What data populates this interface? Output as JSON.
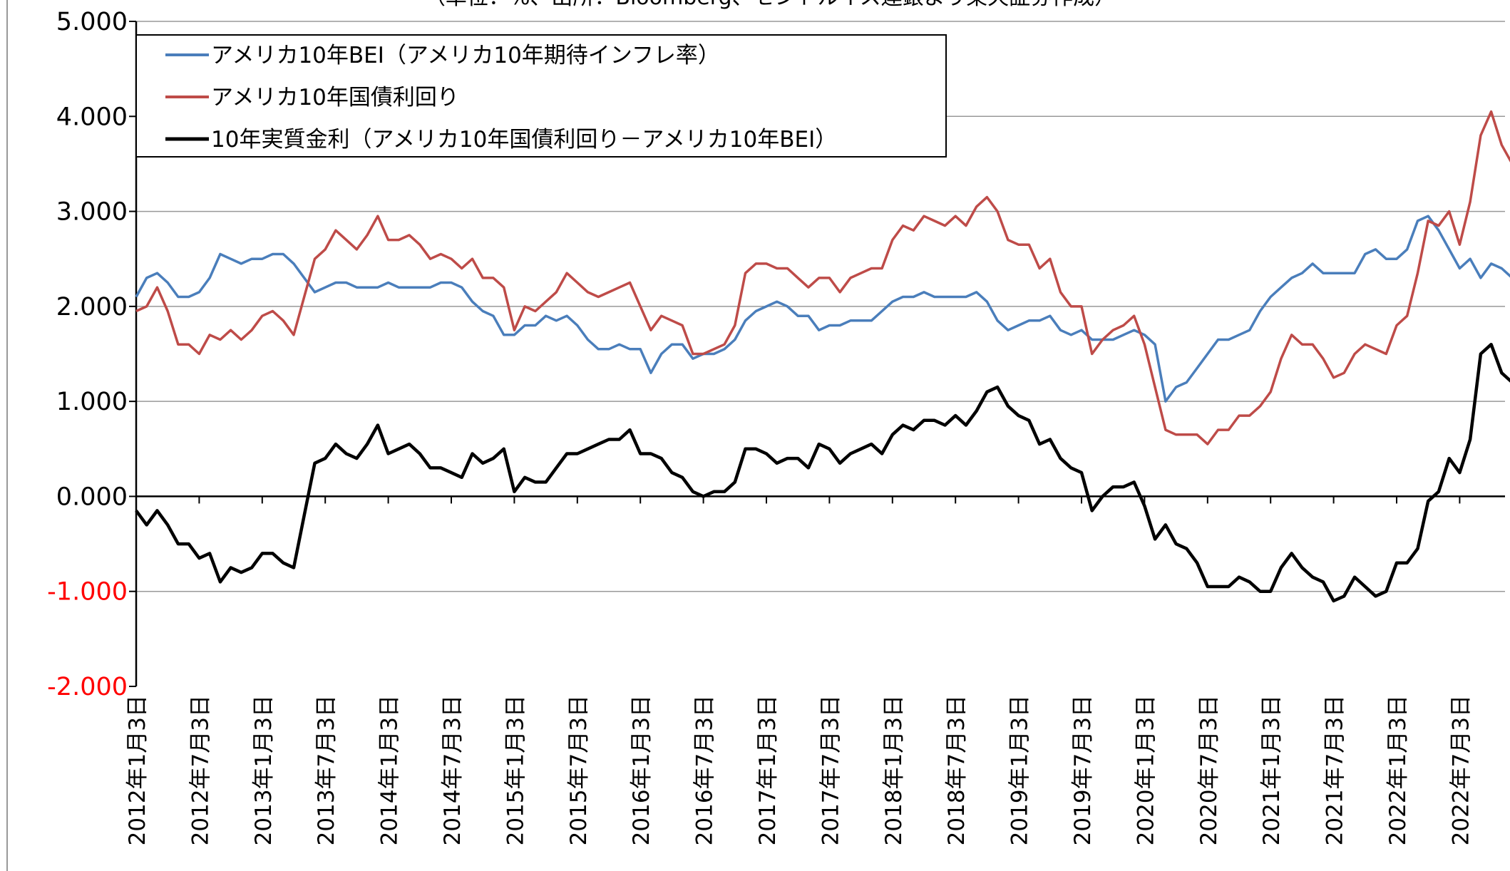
{
  "chart_data": {
    "type": "line",
    "subtitle": "（単位：%、出所：Bloomberg、セントルイス連銀より楽天証券作成）",
    "categories": [
      "2012年1月3日",
      null,
      null,
      null,
      null,
      null,
      "2012年7月3日",
      null,
      null,
      null,
      null,
      null,
      "2013年1月3日",
      null,
      null,
      null,
      null,
      null,
      "2013年7月3日",
      null,
      null,
      null,
      null,
      null,
      "2014年1月3日",
      null,
      null,
      null,
      null,
      null,
      "2014年7月3日",
      null,
      null,
      null,
      null,
      null,
      "2015年1月3日",
      null,
      null,
      null,
      null,
      null,
      "2015年7月3日",
      null,
      null,
      null,
      null,
      null,
      "2016年1月3日",
      null,
      null,
      null,
      null,
      null,
      "2016年7月3日",
      null,
      null,
      null,
      null,
      null,
      "2017年1月3日",
      null,
      null,
      null,
      null,
      null,
      "2017年7月3日",
      null,
      null,
      null,
      null,
      null,
      "2018年1月3日",
      null,
      null,
      null,
      null,
      null,
      "2018年7月3日",
      null,
      null,
      null,
      null,
      null,
      "2019年1月3日",
      null,
      null,
      null,
      null,
      null,
      "2019年7月3日",
      null,
      null,
      null,
      null,
      null,
      "2020年1月3日",
      null,
      null,
      null,
      null,
      null,
      "2020年7月3日",
      null,
      null,
      null,
      null,
      null,
      "2021年1月3日",
      null,
      null,
      null,
      null,
      null,
      "2021年7月3日",
      null,
      null,
      null,
      null,
      null,
      "2022年1月3日",
      null,
      null,
      null,
      null,
      null,
      "2022年7月3日",
      null,
      null,
      null,
      null,
      null
    ],
    "series": [
      {
        "name": "アメリカ10年BEI（アメリカ10年期待インフレ率）",
        "color": "#4a7ebb",
        "values": [
          2.1,
          2.3,
          2.35,
          2.25,
          2.1,
          2.1,
          2.15,
          2.3,
          2.55,
          2.5,
          2.45,
          2.5,
          2.5,
          2.55,
          2.55,
          2.45,
          2.3,
          2.15,
          2.2,
          2.25,
          2.25,
          2.2,
          2.2,
          2.2,
          2.25,
          2.2,
          2.2,
          2.2,
          2.2,
          2.25,
          2.25,
          2.2,
          2.05,
          1.95,
          1.9,
          1.7,
          1.7,
          1.8,
          1.8,
          1.9,
          1.85,
          1.9,
          1.8,
          1.65,
          1.55,
          1.55,
          1.6,
          1.55,
          1.55,
          1.3,
          1.5,
          1.6,
          1.6,
          1.45,
          1.5,
          1.5,
          1.55,
          1.65,
          1.85,
          1.95,
          2.0,
          2.05,
          2.0,
          1.9,
          1.9,
          1.75,
          1.8,
          1.8,
          1.85,
          1.85,
          1.85,
          1.95,
          2.05,
          2.1,
          2.1,
          2.15,
          2.1,
          2.1,
          2.1,
          2.1,
          2.15,
          2.05,
          1.85,
          1.75,
          1.8,
          1.85,
          1.85,
          1.9,
          1.75,
          1.7,
          1.75,
          1.65,
          1.65,
          1.65,
          1.7,
          1.75,
          1.7,
          1.6,
          1.0,
          1.15,
          1.2,
          1.35,
          1.5,
          1.65,
          1.65,
          1.7,
          1.75,
          1.95,
          2.1,
          2.2,
          2.3,
          2.35,
          2.45,
          2.35,
          2.35,
          2.35,
          2.35,
          2.55,
          2.6,
          2.5,
          2.5,
          2.6,
          2.9,
          2.95,
          2.8,
          2.6,
          2.4,
          2.5,
          2.3,
          2.45,
          2.4,
          2.3
        ]
      },
      {
        "name": "アメリカ10年国債利回り",
        "color": "#be4b48",
        "values": [
          1.95,
          2.0,
          2.2,
          1.95,
          1.6,
          1.6,
          1.5,
          1.7,
          1.65,
          1.75,
          1.65,
          1.75,
          1.9,
          1.95,
          1.85,
          1.7,
          2.1,
          2.5,
          2.6,
          2.8,
          2.7,
          2.6,
          2.75,
          2.95,
          2.7,
          2.7,
          2.75,
          2.65,
          2.5,
          2.55,
          2.5,
          2.4,
          2.5,
          2.3,
          2.3,
          2.2,
          1.75,
          2.0,
          1.95,
          2.05,
          2.15,
          2.35,
          2.25,
          2.15,
          2.1,
          2.15,
          2.2,
          2.25,
          2.0,
          1.75,
          1.9,
          1.85,
          1.8,
          1.5,
          1.5,
          1.55,
          1.6,
          1.8,
          2.35,
          2.45,
          2.45,
          2.4,
          2.4,
          2.3,
          2.2,
          2.3,
          2.3,
          2.15,
          2.3,
          2.35,
          2.4,
          2.4,
          2.7,
          2.85,
          2.8,
          2.95,
          2.9,
          2.85,
          2.95,
          2.85,
          3.05,
          3.15,
          3.0,
          2.7,
          2.65,
          2.65,
          2.4,
          2.5,
          2.15,
          2.0,
          2.0,
          1.5,
          1.65,
          1.75,
          1.8,
          1.9,
          1.6,
          1.15,
          0.7,
          0.65,
          0.65,
          0.65,
          0.55,
          0.7,
          0.7,
          0.85,
          0.85,
          0.95,
          1.1,
          1.45,
          1.7,
          1.6,
          1.6,
          1.45,
          1.25,
          1.3,
          1.5,
          1.6,
          1.55,
          1.5,
          1.8,
          1.9,
          2.35,
          2.9,
          2.85,
          3.0,
          2.65,
          3.1,
          3.8,
          4.05,
          3.7,
          3.5
        ]
      },
      {
        "name": "10年実質金利（アメリカ10年国債利回り－アメリカ10年BEI）",
        "color": "#000000",
        "values": [
          -0.15,
          -0.3,
          -0.15,
          -0.3,
          -0.5,
          -0.5,
          -0.65,
          -0.6,
          -0.9,
          -0.75,
          -0.8,
          -0.75,
          -0.6,
          -0.6,
          -0.7,
          -0.75,
          -0.2,
          0.35,
          0.4,
          0.55,
          0.45,
          0.4,
          0.55,
          0.75,
          0.45,
          0.5,
          0.55,
          0.45,
          0.3,
          0.3,
          0.25,
          0.2,
          0.45,
          0.35,
          0.4,
          0.5,
          0.05,
          0.2,
          0.15,
          0.15,
          0.3,
          0.45,
          0.45,
          0.5,
          0.55,
          0.6,
          0.6,
          0.7,
          0.45,
          0.45,
          0.4,
          0.25,
          0.2,
          0.05,
          0.0,
          0.05,
          0.05,
          0.15,
          0.5,
          0.5,
          0.45,
          0.35,
          0.4,
          0.4,
          0.3,
          0.55,
          0.5,
          0.35,
          0.45,
          0.5,
          0.55,
          0.45,
          0.65,
          0.75,
          0.7,
          0.8,
          0.8,
          0.75,
          0.85,
          0.75,
          0.9,
          1.1,
          1.15,
          0.95,
          0.85,
          0.8,
          0.55,
          0.6,
          0.4,
          0.3,
          0.25,
          -0.15,
          0.0,
          0.1,
          0.1,
          0.15,
          -0.1,
          -0.45,
          -0.3,
          -0.5,
          -0.55,
          -0.7,
          -0.95,
          -0.95,
          -0.95,
          -0.85,
          -0.9,
          -1.0,
          -1.0,
          -0.75,
          -0.6,
          -0.75,
          -0.85,
          -0.9,
          -1.1,
          -1.05,
          -0.85,
          -0.95,
          -1.05,
          -1.0,
          -0.7,
          -0.7,
          -0.55,
          -0.05,
          0.05,
          0.4,
          0.25,
          0.6,
          1.5,
          1.6,
          1.3,
          1.2
        ]
      }
    ],
    "ylim": [
      -2,
      5
    ],
    "yticks": [
      {
        "value": -2,
        "label": "-2.000"
      },
      {
        "value": -1,
        "label": "-1.000"
      },
      {
        "value": 0,
        "label": "0.000"
      },
      {
        "value": 1,
        "label": "1.000"
      },
      {
        "value": 2,
        "label": "2.000"
      },
      {
        "value": 3,
        "label": "3.000"
      },
      {
        "value": 4,
        "label": "4.000"
      },
      {
        "value": 5,
        "label": "5.000"
      }
    ],
    "negative_tick_color": "#ff0000",
    "grid": true,
    "legend": "upper left"
  }
}
